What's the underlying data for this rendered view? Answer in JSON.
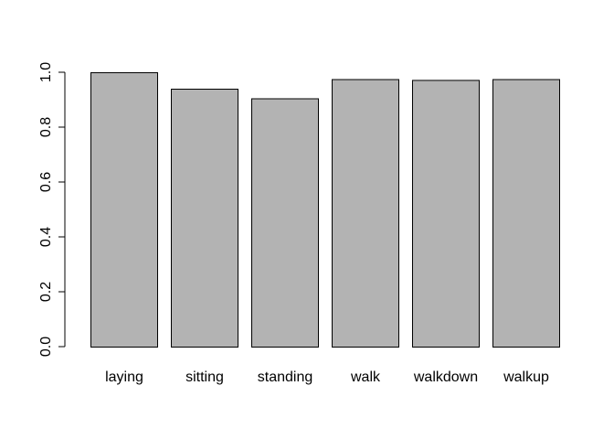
{
  "chart_data": {
    "type": "bar",
    "title": "",
    "xlabel": "",
    "ylabel": "",
    "categories": [
      "laying",
      "sitting",
      "standing",
      "walk",
      "walkdown",
      "walkup"
    ],
    "values": [
      1.0,
      0.94,
      0.905,
      0.975,
      0.972,
      0.975
    ],
    "ylim": [
      0,
      1
    ],
    "yticks": [
      {
        "value": 0.0,
        "label": "0.0"
      },
      {
        "value": 0.2,
        "label": "0.2"
      },
      {
        "value": 0.4,
        "label": "0.4"
      },
      {
        "value": 0.6,
        "label": "0.6"
      },
      {
        "value": 0.8,
        "label": "0.8"
      },
      {
        "value": 1.0,
        "label": "1.0"
      }
    ],
    "grid": false,
    "legend": "none",
    "bar_color": "#b3b3b3",
    "bar_border_color": "#000000"
  }
}
